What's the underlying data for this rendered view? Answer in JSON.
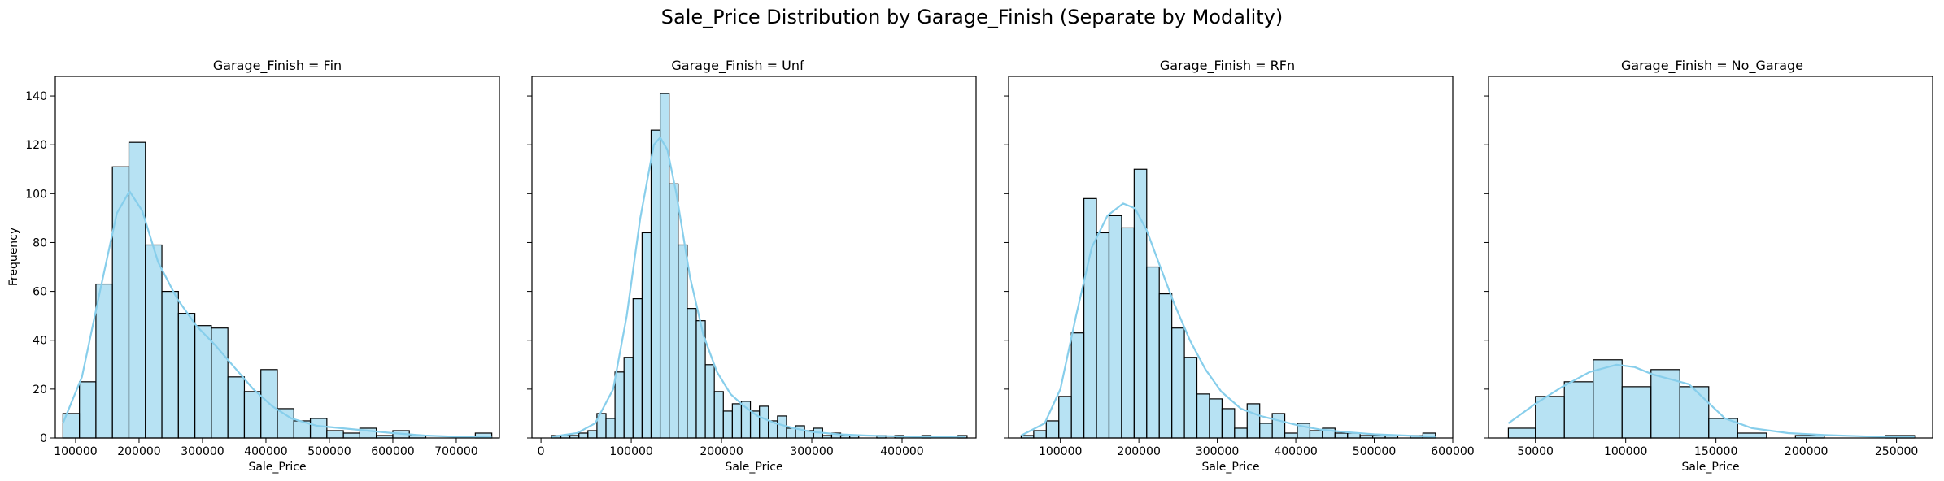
{
  "figure": {
    "title": "Sale_Price Distribution by Garage_Finish (Separate by Modality)",
    "bar_fill": "#87CEEB",
    "bar_fill_opacity": 0.6,
    "bar_edge": "#000000",
    "kde_color": "#87CEEB"
  },
  "chart_data": [
    {
      "type": "histogram",
      "title": "Garage_Finish = Fin",
      "xlabel": "Sale_Price",
      "ylabel": "Frequency",
      "xlim": [
        68000,
        768000
      ],
      "ylim": [
        0,
        148
      ],
      "xticks": [
        100000,
        200000,
        300000,
        400000,
        500000,
        600000,
        700000
      ],
      "yticks": [
        0,
        20,
        40,
        60,
        80,
        100,
        120,
        140
      ],
      "bins": [
        {
          "x0": 80000,
          "x1": 106000,
          "count": 10
        },
        {
          "x0": 106000,
          "x1": 132000,
          "count": 23
        },
        {
          "x0": 132000,
          "x1": 158000,
          "count": 63
        },
        {
          "x0": 158000,
          "x1": 184000,
          "count": 111
        },
        {
          "x0": 184000,
          "x1": 210000,
          "count": 121
        },
        {
          "x0": 210000,
          "x1": 236000,
          "count": 79
        },
        {
          "x0": 236000,
          "x1": 262000,
          "count": 60
        },
        {
          "x0": 262000,
          "x1": 288000,
          "count": 51
        },
        {
          "x0": 288000,
          "x1": 314000,
          "count": 46
        },
        {
          "x0": 314000,
          "x1": 340000,
          "count": 45
        },
        {
          "x0": 340000,
          "x1": 366000,
          "count": 25
        },
        {
          "x0": 366000,
          "x1": 392000,
          "count": 19
        },
        {
          "x0": 392000,
          "x1": 418000,
          "count": 28
        },
        {
          "x0": 418000,
          "x1": 444000,
          "count": 12
        },
        {
          "x0": 444000,
          "x1": 470000,
          "count": 7
        },
        {
          "x0": 470000,
          "x1": 496000,
          "count": 8
        },
        {
          "x0": 496000,
          "x1": 522000,
          "count": 3
        },
        {
          "x0": 522000,
          "x1": 548000,
          "count": 2
        },
        {
          "x0": 548000,
          "x1": 574000,
          "count": 4
        },
        {
          "x0": 574000,
          "x1": 600000,
          "count": 1
        },
        {
          "x0": 600000,
          "x1": 626000,
          "count": 3
        },
        {
          "x0": 626000,
          "x1": 652000,
          "count": 1
        },
        {
          "x0": 730000,
          "x1": 756000,
          "count": 2
        }
      ],
      "kde": [
        [
          80000,
          6
        ],
        [
          110000,
          25
        ],
        [
          140000,
          62
        ],
        [
          165000,
          92
        ],
        [
          185000,
          101
        ],
        [
          205000,
          93
        ],
        [
          230000,
          72
        ],
        [
          260000,
          57
        ],
        [
          290000,
          46
        ],
        [
          320000,
          38
        ],
        [
          350000,
          29
        ],
        [
          380000,
          20
        ],
        [
          410000,
          13
        ],
        [
          440000,
          8
        ],
        [
          480000,
          5
        ],
        [
          520000,
          4
        ],
        [
          560000,
          3
        ],
        [
          600000,
          2
        ],
        [
          650000,
          1
        ],
        [
          700000,
          0.5
        ],
        [
          756000,
          0.2
        ]
      ]
    },
    {
      "type": "histogram",
      "title": "Garage_Finish = Unf",
      "xlabel": "Sale_Price",
      "ylabel": "",
      "xlim": [
        -10000,
        482000
      ],
      "ylim": [
        0,
        148
      ],
      "xticks": [
        0,
        100000,
        200000,
        300000,
        400000
      ],
      "yticks": [
        0,
        20,
        40,
        60,
        80,
        100,
        120,
        140
      ],
      "bins": [
        {
          "x0": 12000,
          "x1": 22000,
          "count": 1
        },
        {
          "x0": 22000,
          "x1": 32000,
          "count": 1
        },
        {
          "x0": 32000,
          "x1": 42000,
          "count": 1
        },
        {
          "x0": 42000,
          "x1": 52000,
          "count": 2
        },
        {
          "x0": 52000,
          "x1": 62000,
          "count": 3
        },
        {
          "x0": 62000,
          "x1": 72000,
          "count": 10
        },
        {
          "x0": 72000,
          "x1": 82000,
          "count": 8
        },
        {
          "x0": 82000,
          "x1": 92000,
          "count": 27
        },
        {
          "x0": 92000,
          "x1": 102000,
          "count": 33
        },
        {
          "x0": 102000,
          "x1": 112000,
          "count": 57
        },
        {
          "x0": 112000,
          "x1": 122000,
          "count": 84
        },
        {
          "x0": 122000,
          "x1": 132000,
          "count": 126
        },
        {
          "x0": 132000,
          "x1": 142000,
          "count": 141
        },
        {
          "x0": 142000,
          "x1": 152000,
          "count": 104
        },
        {
          "x0": 152000,
          "x1": 162000,
          "count": 79
        },
        {
          "x0": 162000,
          "x1": 172000,
          "count": 53
        },
        {
          "x0": 172000,
          "x1": 182000,
          "count": 48
        },
        {
          "x0": 182000,
          "x1": 192000,
          "count": 30
        },
        {
          "x0": 192000,
          "x1": 202000,
          "count": 19
        },
        {
          "x0": 202000,
          "x1": 212000,
          "count": 11
        },
        {
          "x0": 212000,
          "x1": 222000,
          "count": 14
        },
        {
          "x0": 222000,
          "x1": 232000,
          "count": 15
        },
        {
          "x0": 232000,
          "x1": 242000,
          "count": 11
        },
        {
          "x0": 242000,
          "x1": 252000,
          "count": 13
        },
        {
          "x0": 252000,
          "x1": 262000,
          "count": 7
        },
        {
          "x0": 262000,
          "x1": 272000,
          "count": 9
        },
        {
          "x0": 272000,
          "x1": 282000,
          "count": 4
        },
        {
          "x0": 282000,
          "x1": 292000,
          "count": 5
        },
        {
          "x0": 292000,
          "x1": 302000,
          "count": 3
        },
        {
          "x0": 302000,
          "x1": 312000,
          "count": 4
        },
        {
          "x0": 312000,
          "x1": 322000,
          "count": 1
        },
        {
          "x0": 322000,
          "x1": 332000,
          "count": 2
        },
        {
          "x0": 332000,
          "x1": 342000,
          "count": 1
        },
        {
          "x0": 342000,
          "x1": 352000,
          "count": 1
        },
        {
          "x0": 372000,
          "x1": 382000,
          "count": 1
        },
        {
          "x0": 392000,
          "x1": 402000,
          "count": 1
        },
        {
          "x0": 422000,
          "x1": 432000,
          "count": 1
        },
        {
          "x0": 462000,
          "x1": 472000,
          "count": 1
        }
      ],
      "kde": [
        [
          12000,
          0.5
        ],
        [
          40000,
          2
        ],
        [
          60000,
          6
        ],
        [
          80000,
          20
        ],
        [
          95000,
          50
        ],
        [
          110000,
          90
        ],
        [
          125000,
          120
        ],
        [
          132000,
          123
        ],
        [
          140000,
          118
        ],
        [
          150000,
          100
        ],
        [
          165000,
          66
        ],
        [
          180000,
          42
        ],
        [
          195000,
          27
        ],
        [
          210000,
          18
        ],
        [
          225000,
          13
        ],
        [
          240000,
          9
        ],
        [
          260000,
          6
        ],
        [
          280000,
          4
        ],
        [
          300000,
          2.5
        ],
        [
          330000,
          1.5
        ],
        [
          360000,
          1
        ],
        [
          400000,
          0.6
        ],
        [
          470000,
          0.2
        ]
      ]
    },
    {
      "type": "histogram",
      "title": "Garage_Finish = RFn",
      "xlabel": "Sale_Price",
      "ylabel": "",
      "xlim": [
        34000,
        600000
      ],
      "ylim": [
        0,
        148
      ],
      "xticks": [
        100000,
        200000,
        300000,
        400000,
        500000,
        600000
      ],
      "yticks": [
        0,
        20,
        40,
        60,
        80,
        100,
        120,
        140
      ],
      "bins": [
        {
          "x0": 50000,
          "x1": 66000,
          "count": 1
        },
        {
          "x0": 66000,
          "x1": 82000,
          "count": 3
        },
        {
          "x0": 82000,
          "x1": 98000,
          "count": 7
        },
        {
          "x0": 98000,
          "x1": 114000,
          "count": 17
        },
        {
          "x0": 114000,
          "x1": 130000,
          "count": 43
        },
        {
          "x0": 130000,
          "x1": 146000,
          "count": 98
        },
        {
          "x0": 146000,
          "x1": 162000,
          "count": 84
        },
        {
          "x0": 162000,
          "x1": 178000,
          "count": 91
        },
        {
          "x0": 178000,
          "x1": 194000,
          "count": 86
        },
        {
          "x0": 194000,
          "x1": 210000,
          "count": 110
        },
        {
          "x0": 210000,
          "x1": 226000,
          "count": 70
        },
        {
          "x0": 226000,
          "x1": 242000,
          "count": 59
        },
        {
          "x0": 242000,
          "x1": 258000,
          "count": 45
        },
        {
          "x0": 258000,
          "x1": 274000,
          "count": 33
        },
        {
          "x0": 274000,
          "x1": 290000,
          "count": 18
        },
        {
          "x0": 290000,
          "x1": 306000,
          "count": 16
        },
        {
          "x0": 306000,
          "x1": 322000,
          "count": 12
        },
        {
          "x0": 322000,
          "x1": 338000,
          "count": 4
        },
        {
          "x0": 338000,
          "x1": 354000,
          "count": 14
        },
        {
          "x0": 354000,
          "x1": 370000,
          "count": 6
        },
        {
          "x0": 370000,
          "x1": 386000,
          "count": 10
        },
        {
          "x0": 386000,
          "x1": 402000,
          "count": 2
        },
        {
          "x0": 402000,
          "x1": 418000,
          "count": 6
        },
        {
          "x0": 418000,
          "x1": 434000,
          "count": 3
        },
        {
          "x0": 434000,
          "x1": 450000,
          "count": 4
        },
        {
          "x0": 450000,
          "x1": 466000,
          "count": 2
        },
        {
          "x0": 466000,
          "x1": 482000,
          "count": 2
        },
        {
          "x0": 482000,
          "x1": 498000,
          "count": 1
        },
        {
          "x0": 498000,
          "x1": 514000,
          "count": 1
        },
        {
          "x0": 514000,
          "x1": 530000,
          "count": 1
        },
        {
          "x0": 546000,
          "x1": 562000,
          "count": 1
        },
        {
          "x0": 562000,
          "x1": 578000,
          "count": 2
        }
      ],
      "kde": [
        [
          50000,
          1
        ],
        [
          80000,
          6
        ],
        [
          100000,
          20
        ],
        [
          120000,
          50
        ],
        [
          140000,
          78
        ],
        [
          160000,
          91
        ],
        [
          180000,
          96
        ],
        [
          195000,
          94
        ],
        [
          210000,
          85
        ],
        [
          225000,
          72
        ],
        [
          245000,
          55
        ],
        [
          265000,
          40
        ],
        [
          285000,
          28
        ],
        [
          305000,
          19
        ],
        [
          330000,
          12
        ],
        [
          355000,
          9
        ],
        [
          380000,
          7
        ],
        [
          405000,
          5
        ],
        [
          430000,
          3.5
        ],
        [
          460000,
          2.5
        ],
        [
          500000,
          1.5
        ],
        [
          540000,
          1
        ],
        [
          578000,
          0.5
        ]
      ]
    },
    {
      "type": "histogram",
      "title": "Garage_Finish = No_Garage",
      "xlabel": "Sale_Price",
      "ylabel": "",
      "xlim": [
        24000,
        270000
      ],
      "ylim": [
        0,
        148
      ],
      "xticks": [
        50000,
        100000,
        150000,
        200000,
        250000
      ],
      "yticks": [
        0,
        20,
        40,
        60,
        80,
        100,
        120,
        140
      ],
      "bins": [
        {
          "x0": 35000,
          "x1": 50000,
          "count": 4
        },
        {
          "x0": 50000,
          "x1": 66000,
          "count": 17
        },
        {
          "x0": 66000,
          "x1": 82000,
          "count": 23
        },
        {
          "x0": 82000,
          "x1": 98000,
          "count": 32
        },
        {
          "x0": 98000,
          "x1": 114000,
          "count": 21
        },
        {
          "x0": 114000,
          "x1": 130000,
          "count": 28
        },
        {
          "x0": 130000,
          "x1": 146000,
          "count": 21
        },
        {
          "x0": 146000,
          "x1": 162000,
          "count": 8
        },
        {
          "x0": 162000,
          "x1": 178000,
          "count": 2
        },
        {
          "x0": 194000,
          "x1": 210000,
          "count": 1
        },
        {
          "x0": 244000,
          "x1": 260000,
          "count": 1
        }
      ],
      "kde": [
        [
          35000,
          6
        ],
        [
          50000,
          14
        ],
        [
          65000,
          21
        ],
        [
          80000,
          27
        ],
        [
          95000,
          30
        ],
        [
          105000,
          29
        ],
        [
          115000,
          26
        ],
        [
          125000,
          24
        ],
        [
          135000,
          22
        ],
        [
          145000,
          15
        ],
        [
          155000,
          8
        ],
        [
          170000,
          4
        ],
        [
          190000,
          2
        ],
        [
          210000,
          1.2
        ],
        [
          235000,
          0.6
        ],
        [
          260000,
          0.3
        ]
      ]
    }
  ]
}
